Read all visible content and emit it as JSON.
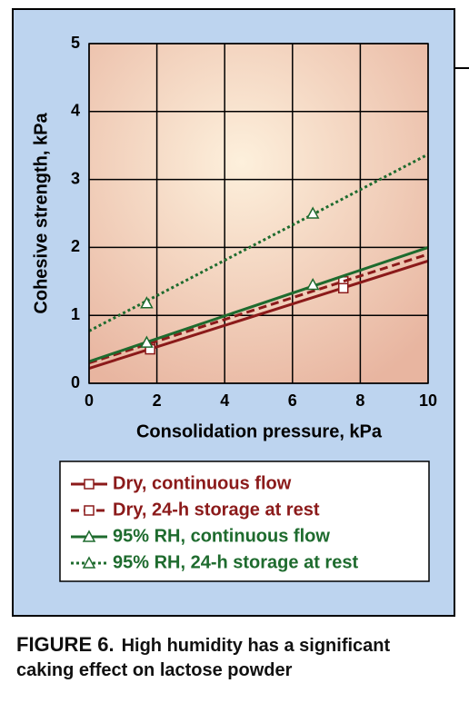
{
  "chart_data": {
    "type": "line",
    "xlabel": "Consolidation pressure, kPa",
    "ylabel": "Cohesive strength, kPa",
    "xlim": [
      0,
      10
    ],
    "xticks": [
      0,
      2,
      4,
      6,
      8,
      10
    ],
    "ylim": [
      0,
      5
    ],
    "yticks": [
      0,
      1,
      2,
      3,
      4,
      5
    ],
    "grid": true,
    "series": [
      {
        "name": "Dry, continuous flow",
        "color": "#8b1a1a",
        "line_style": "solid",
        "marker": "square",
        "x": [
          1.8,
          7.5
        ],
        "values": [
          0.55,
          1.5
        ],
        "fit_x": [
          0,
          10
        ],
        "fit_values": [
          0.22,
          1.8
        ]
      },
      {
        "name": "Dry, 24-h storage at rest",
        "color": "#8b1a1a",
        "line_style": "dashed",
        "marker": "square",
        "x": [
          1.8,
          7.5
        ],
        "values": [
          0.5,
          1.4
        ],
        "fit_x": [
          0,
          10
        ],
        "fit_values": [
          0.3,
          1.9
        ]
      },
      {
        "name": "95% RH, continuous flow",
        "color": "#1e6b2e",
        "line_style": "solid",
        "marker": "triangle",
        "x": [
          1.7,
          6.6
        ],
        "values": [
          0.6,
          1.45
        ],
        "fit_x": [
          0,
          10
        ],
        "fit_values": [
          0.32,
          2.0
        ]
      },
      {
        "name": "95% RH, 24-h storage at rest",
        "color": "#1e6b2e",
        "line_style": "dotted",
        "marker": "triangle",
        "x": [
          1.7,
          6.6
        ],
        "values": [
          1.18,
          2.5
        ],
        "fit_x": [
          0,
          10
        ],
        "fit_values": [
          0.77,
          3.37
        ]
      }
    ],
    "caption_label": "FIGURE 6.",
    "caption": "High humidity has a significant caking effect on lactose powder"
  }
}
